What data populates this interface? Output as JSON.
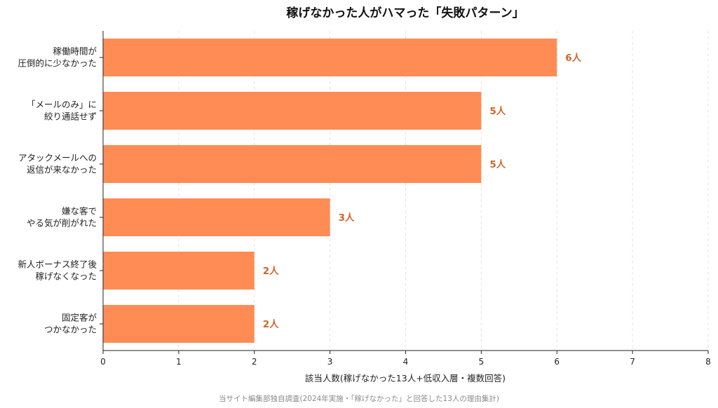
{
  "chart_data": {
    "type": "bar",
    "orientation": "horizontal",
    "title": "稼げなかった人がハマった「失敗パターン」",
    "xlabel": "該当人数(稼げなかった13人+低収入層・複数回答)",
    "ylabel": "",
    "xlim": [
      0,
      8
    ],
    "xticks": [
      "0",
      "1",
      "2",
      "3",
      "4",
      "5",
      "6",
      "7",
      "8"
    ],
    "grid": "x-dashed",
    "bar_color": "#ff8c55",
    "label_color": "#d26428",
    "categories": [
      [
        "稼働時間が",
        "圧倒的に少なかった"
      ],
      [
        "「メールのみ」に",
        "絞り通話せず"
      ],
      [
        "アタックメールへの",
        "返信が来なかった"
      ],
      [
        "嫌な客で",
        "やる気が削がれた"
      ],
      [
        "新人ボーナス終了後",
        "稼げなくなった"
      ],
      [
        "固定客が",
        "つかなかった"
      ]
    ],
    "values": [
      6,
      5,
      5,
      3,
      2,
      2
    ],
    "value_labels": [
      "6人",
      "5人",
      "5人",
      "3人",
      "2人",
      "2人"
    ],
    "source": "当サイト編集部独自調査(2024年実施・「稼げなかった」と回答した13人の理由集計)"
  }
}
